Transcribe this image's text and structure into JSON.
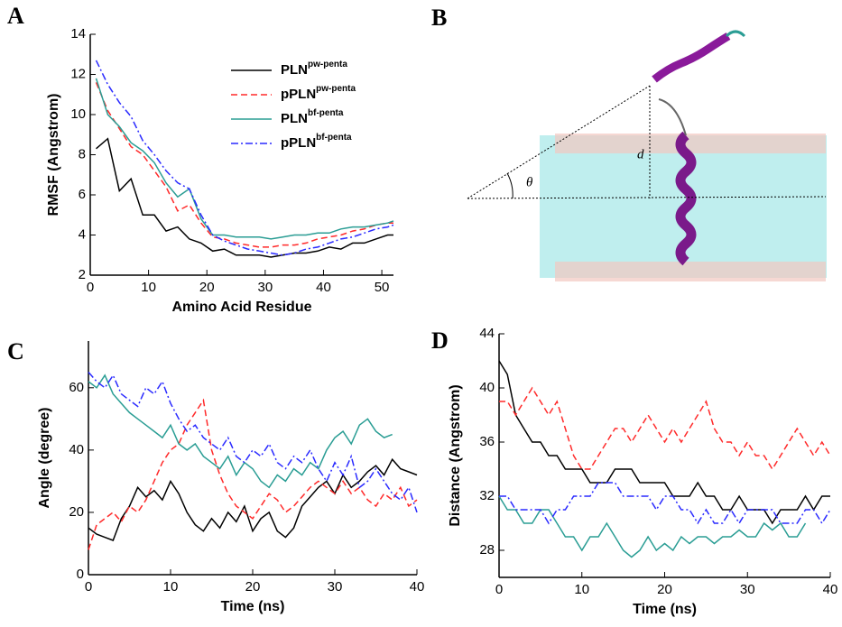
{
  "figure": {
    "panel_b": {
      "label": "B",
      "angle_symbol": "θ",
      "distance_symbol": "d"
    }
  },
  "chart_data": [
    {
      "type": "line",
      "panel_label": "A",
      "x_label": "Amino Acid Residue",
      "y_label": "RMSF (Angstrom)",
      "xlim": [
        0,
        52
      ],
      "ylim": [
        2,
        14
      ],
      "xticks": [
        0,
        10,
        20,
        30,
        40,
        50
      ],
      "yticks": [
        2,
        4,
        6,
        8,
        10,
        12,
        14
      ],
      "legend": "upper right",
      "x": [
        1,
        3,
        5,
        7,
        9,
        11,
        13,
        15,
        17,
        19,
        21,
        23,
        25,
        27,
        29,
        31,
        33,
        35,
        37,
        39,
        41,
        43,
        45,
        47,
        49,
        51,
        52
      ],
      "series": [
        {
          "name": "PLN",
          "name_sup": "pw-penta",
          "color": "#000000",
          "dash": "solid",
          "values": [
            8.3,
            8.8,
            6.2,
            6.8,
            5.0,
            5.0,
            4.2,
            4.4,
            3.8,
            3.6,
            3.2,
            3.3,
            3.0,
            3.0,
            3.0,
            2.9,
            3.0,
            3.1,
            3.1,
            3.2,
            3.4,
            3.3,
            3.6,
            3.6,
            3.8,
            4.0,
            4.0
          ]
        },
        {
          "name": "pPLN",
          "name_sup": "pw-penta",
          "color": "#ff2a2a",
          "dash": "dashed",
          "values": [
            11.6,
            10.2,
            9.3,
            8.4,
            8.0,
            7.2,
            6.4,
            5.2,
            5.5,
            4.6,
            3.9,
            3.8,
            3.6,
            3.5,
            3.4,
            3.4,
            3.5,
            3.5,
            3.6,
            3.8,
            3.9,
            4.0,
            4.2,
            4.3,
            4.5,
            4.6,
            4.6
          ]
        },
        {
          "name": "PLN",
          "name_sup": "bf-penta",
          "color": "#2a9d94",
          "dash": "solid",
          "values": [
            11.8,
            10.0,
            9.4,
            8.6,
            8.2,
            7.6,
            6.6,
            5.9,
            6.3,
            4.8,
            4.0,
            4.0,
            3.9,
            3.9,
            3.9,
            3.8,
            3.9,
            4.0,
            4.0,
            4.1,
            4.1,
            4.3,
            4.4,
            4.4,
            4.5,
            4.6,
            4.7
          ]
        },
        {
          "name": "pPLN",
          "name_sup": "bf-penta",
          "color": "#2a2aff",
          "dash": "dashdot",
          "values": [
            12.7,
            11.5,
            10.6,
            9.9,
            8.7,
            8.0,
            7.2,
            6.6,
            6.3,
            5.0,
            4.0,
            3.7,
            3.5,
            3.3,
            3.2,
            3.1,
            3.0,
            3.1,
            3.3,
            3.4,
            3.6,
            3.8,
            3.9,
            4.1,
            4.3,
            4.4,
            4.5
          ]
        }
      ]
    },
    {
      "type": "line",
      "panel_label": "C",
      "x_label": "Time (ns)",
      "y_label": "Angle (degree)",
      "xlim": [
        0,
        40
      ],
      "ylim": [
        0,
        75
      ],
      "xticks": [
        0,
        10,
        20,
        30,
        40
      ],
      "yticks": [
        0,
        20,
        40,
        60
      ],
      "x": [
        0,
        1,
        2,
        3,
        4,
        5,
        6,
        7,
        8,
        9,
        10,
        11,
        12,
        13,
        14,
        15,
        16,
        17,
        18,
        19,
        20,
        21,
        22,
        23,
        24,
        25,
        26,
        27,
        28,
        29,
        30,
        31,
        32,
        33,
        34,
        35,
        36,
        37,
        38,
        39,
        40
      ],
      "series": [
        {
          "name": "PLN",
          "name_sup": "pw-penta",
          "color": "#000000",
          "dash": "solid",
          "values": [
            15,
            13,
            12,
            11,
            18,
            22,
            28,
            25,
            27,
            24,
            30,
            26,
            20,
            16,
            14,
            18,
            15,
            20,
            17,
            22,
            14,
            18,
            20,
            14,
            12,
            15,
            22,
            25,
            28,
            30,
            26,
            32,
            28,
            30,
            33,
            35,
            32,
            37,
            34,
            33,
            32
          ]
        },
        {
          "name": "pPLN",
          "name_sup": "pw-penta",
          "color": "#ff2a2a",
          "dash": "dashed",
          "values": [
            8,
            16,
            18,
            20,
            17,
            22,
            20,
            24,
            30,
            36,
            40,
            42,
            48,
            52,
            56,
            40,
            32,
            26,
            22,
            20,
            18,
            22,
            26,
            24,
            20,
            22,
            25,
            28,
            30,
            28,
            26,
            30,
            26,
            28,
            24,
            22,
            26,
            24,
            28,
            22,
            24
          ]
        },
        {
          "name": "PLN",
          "name_sup": "bf-penta",
          "color": "#2a9d94",
          "dash": "solid",
          "values": [
            62,
            60,
            64,
            58,
            55,
            52,
            50,
            48,
            46,
            44,
            48,
            42,
            40,
            42,
            38,
            36,
            34,
            38,
            32,
            36,
            34,
            30,
            28,
            32,
            30,
            34,
            32,
            36,
            34,
            40,
            44,
            46,
            42,
            48,
            50,
            46,
            44,
            45,
            null,
            null,
            null
          ]
        },
        {
          "name": "pPLN",
          "name_sup": "bf-penta",
          "color": "#2a2aff",
          "dash": "dashdot",
          "values": [
            65,
            62,
            60,
            64,
            58,
            56,
            54,
            60,
            58,
            62,
            55,
            50,
            46,
            48,
            44,
            42,
            40,
            44,
            38,
            36,
            40,
            38,
            42,
            36,
            34,
            38,
            36,
            40,
            34,
            30,
            36,
            32,
            38,
            28,
            30,
            34,
            30,
            26,
            24,
            28,
            20
          ]
        }
      ]
    },
    {
      "type": "line",
      "panel_label": "D",
      "x_label": "Time (ns)",
      "y_label": "Distance (Angstrom)",
      "xlim": [
        0,
        40
      ],
      "ylim": [
        26,
        44
      ],
      "xticks": [
        0,
        10,
        20,
        30,
        40
      ],
      "yticks": [
        28,
        32,
        36,
        40,
        44
      ],
      "x": [
        0,
        1,
        2,
        3,
        4,
        5,
        6,
        7,
        8,
        9,
        10,
        11,
        12,
        13,
        14,
        15,
        16,
        17,
        18,
        19,
        20,
        21,
        22,
        23,
        24,
        25,
        26,
        27,
        28,
        29,
        30,
        31,
        32,
        33,
        34,
        35,
        36,
        37,
        38,
        39,
        40
      ],
      "series": [
        {
          "name": "PLN",
          "name_sup": "pw-penta",
          "color": "#000000",
          "dash": "solid",
          "values": [
            42,
            41,
            38,
            37,
            36,
            36,
            35,
            35,
            34,
            34,
            34,
            33,
            33,
            33,
            34,
            34,
            34,
            33,
            33,
            33,
            33,
            32,
            32,
            32,
            33,
            32,
            32,
            31,
            31,
            32,
            31,
            31,
            31,
            30,
            31,
            31,
            31,
            32,
            31,
            32,
            32
          ]
        },
        {
          "name": "pPLN",
          "name_sup": "pw-penta",
          "color": "#ff2a2a",
          "dash": "dashed",
          "values": [
            39,
            39,
            38,
            39,
            40,
            39,
            38,
            39,
            37,
            35,
            34,
            34,
            35,
            36,
            37,
            37,
            36,
            37,
            38,
            37,
            36,
            37,
            36,
            37,
            38,
            39,
            37,
            36,
            36,
            35,
            36,
            35,
            35,
            34,
            35,
            36,
            37,
            36,
            35,
            36,
            35
          ]
        },
        {
          "name": "PLN",
          "name_sup": "bf-penta",
          "color": "#2a9d94",
          "dash": "solid",
          "values": [
            32,
            31,
            31,
            30,
            30,
            31,
            31,
            30,
            29,
            29,
            28,
            29,
            29,
            30,
            29,
            28,
            27.5,
            28,
            29,
            28,
            28.5,
            28,
            29,
            28.5,
            29,
            29,
            28.5,
            29,
            29,
            29.5,
            29,
            29,
            30,
            29.5,
            30,
            29,
            29,
            30,
            null,
            null,
            null
          ]
        },
        {
          "name": "pPLN",
          "name_sup": "bf-penta",
          "color": "#2a2aff",
          "dash": "dashdot",
          "values": [
            32,
            32,
            31,
            31,
            31,
            31,
            30,
            31,
            31,
            32,
            32,
            32,
            33,
            33,
            33,
            32,
            32,
            32,
            32,
            31,
            32,
            32,
            31,
            31,
            30,
            31,
            30,
            30,
            31,
            30,
            31,
            31,
            31,
            31,
            30,
            30,
            30,
            31,
            31,
            30,
            31
          ]
        }
      ]
    }
  ]
}
